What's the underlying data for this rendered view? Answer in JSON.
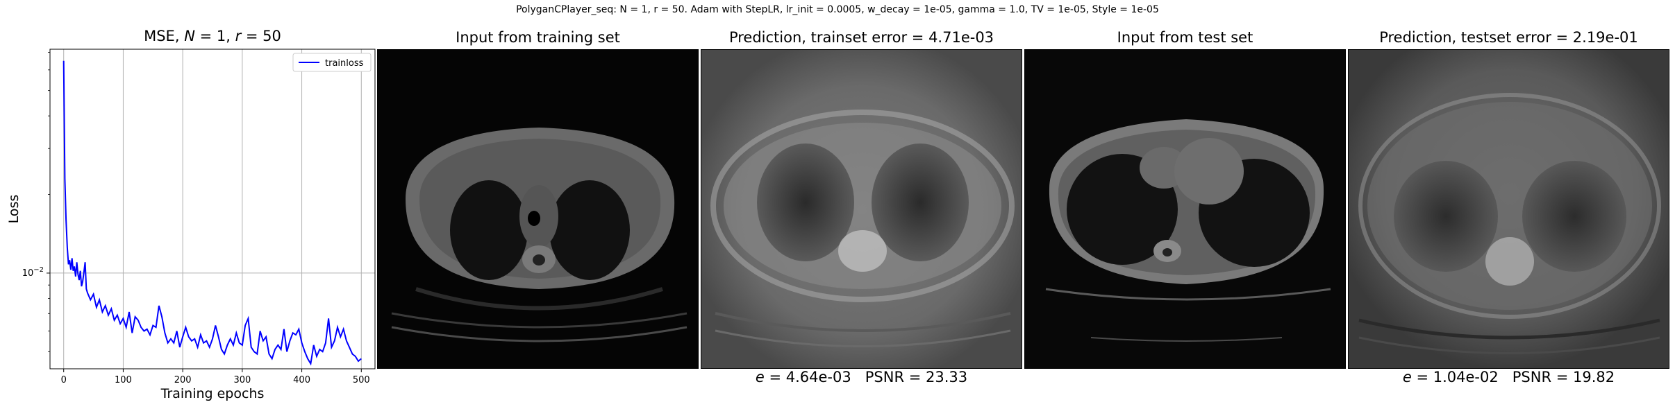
{
  "suptitle": "PolyganCPlayer_seq: N = 1, r = 50. Adam with StepLR, lr_init = 0.0005, w_decay = 1e-05, gamma = 1.0, TV = 1e-05, Style = 1e-05",
  "chart_data": {
    "type": "line",
    "title_prefix": "MSE, ",
    "title_N": "N",
    "title_mid": " = 1, ",
    "title_r": "r",
    "title_suffix": " = 50",
    "xlabel": "Training epochs",
    "ylabel": "Loss",
    "xlim": [
      -23,
      523
    ],
    "ylim": [
      0.0043,
      0.072
    ],
    "yscale": "log",
    "xticks": [
      0,
      100,
      200,
      300,
      400,
      500
    ],
    "yticks": [
      {
        "value": 0.01,
        "label_base": "10",
        "label_exp": "−2"
      }
    ],
    "grid": true,
    "legend_position": "top-right",
    "series": [
      {
        "name": "trainloss",
        "color": "#0000ff",
        "x": [
          0,
          2,
          4,
          6,
          8,
          10,
          12,
          14,
          16,
          18,
          20,
          22,
          24,
          26,
          28,
          30,
          32,
          34,
          36,
          38,
          40,
          45,
          50,
          55,
          60,
          65,
          70,
          75,
          80,
          85,
          90,
          95,
          100,
          105,
          110,
          115,
          120,
          125,
          130,
          135,
          140,
          145,
          150,
          155,
          160,
          165,
          170,
          175,
          180,
          185,
          190,
          195,
          200,
          205,
          210,
          215,
          220,
          225,
          230,
          235,
          240,
          245,
          250,
          255,
          260,
          265,
          270,
          275,
          280,
          285,
          290,
          295,
          300,
          305,
          310,
          315,
          320,
          325,
          330,
          335,
          340,
          345,
          350,
          355,
          360,
          365,
          370,
          375,
          380,
          385,
          390,
          395,
          400,
          405,
          410,
          415,
          420,
          425,
          430,
          435,
          440,
          445,
          450,
          455,
          460,
          465,
          470,
          475,
          480,
          485,
          490,
          495,
          500
        ],
        "y": [
          0.065,
          0.023,
          0.016,
          0.0125,
          0.0108,
          0.0112,
          0.0103,
          0.0114,
          0.0102,
          0.0106,
          0.0097,
          0.011,
          0.0099,
          0.0094,
          0.0102,
          0.0089,
          0.0093,
          0.0101,
          0.011,
          0.0087,
          0.0084,
          0.0079,
          0.0083,
          0.0074,
          0.0079,
          0.0071,
          0.0075,
          0.0069,
          0.0073,
          0.0066,
          0.0069,
          0.0064,
          0.0067,
          0.0062,
          0.0071,
          0.0059,
          0.0068,
          0.0066,
          0.0062,
          0.006,
          0.0061,
          0.0058,
          0.0063,
          0.0062,
          0.0075,
          0.0068,
          0.0059,
          0.0054,
          0.0056,
          0.0054,
          0.006,
          0.0052,
          0.0057,
          0.0062,
          0.0057,
          0.0055,
          0.0056,
          0.0052,
          0.0058,
          0.0054,
          0.0055,
          0.0052,
          0.0056,
          0.0063,
          0.0057,
          0.0051,
          0.0049,
          0.0053,
          0.0056,
          0.0053,
          0.0059,
          0.0054,
          0.0053,
          0.0063,
          0.0067,
          0.0052,
          0.005,
          0.0049,
          0.006,
          0.0055,
          0.0057,
          0.0049,
          0.0047,
          0.0051,
          0.0053,
          0.0051,
          0.0061,
          0.005,
          0.0055,
          0.0059,
          0.0058,
          0.0061,
          0.0054,
          0.005,
          0.0047,
          0.0045,
          0.0053,
          0.0048,
          0.0051,
          0.005,
          0.0054,
          0.0067,
          0.0052,
          0.0055,
          0.0062,
          0.0057,
          0.0061,
          0.0055,
          0.0052,
          0.0049,
          0.0048,
          0.0046,
          0.0047
        ]
      }
    ]
  },
  "panels": {
    "train_input_title": "Input from training set",
    "train_pred_title": "Prediction, trainset error = 4.71e-03",
    "train_caption_e": "e",
    "train_caption_rest": " = 4.64e-03   PSNR = 23.33",
    "test_input_title": "Input from test set",
    "test_pred_title": "Prediction, testset error = 2.19e-01",
    "test_caption_e": "e",
    "test_caption_rest": " = 1.04e-02   PSNR = 19.82"
  }
}
